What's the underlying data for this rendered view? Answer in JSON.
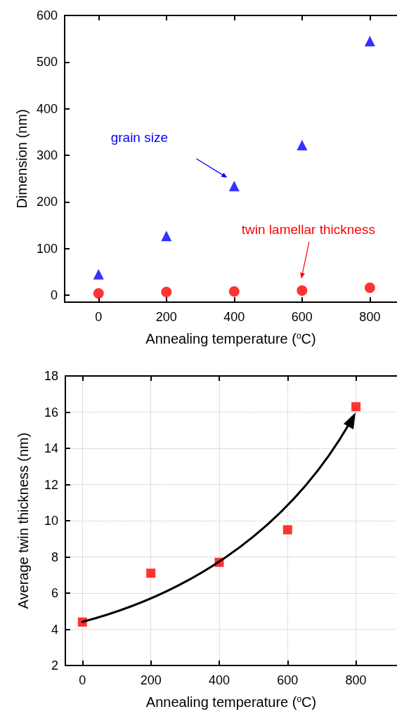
{
  "chart_data": [
    {
      "type": "scatter",
      "xlabel": "Annealing temperature ($^{o}$C)",
      "ylabel": "Dimension (nm)",
      "x": [
        0,
        200,
        400,
        600,
        800
      ],
      "series": [
        {
          "name": "grain size",
          "color": "#0000ff",
          "marker": "triangle",
          "values": [
            45,
            127,
            234,
            322,
            545
          ]
        },
        {
          "name": "twin lamellar thickness",
          "color": "#ff0000",
          "marker": "circle",
          "values": [
            4,
            7,
            8,
            10,
            16
          ]
        }
      ],
      "xlim": [
        -100,
        880
      ],
      "xticks": [
        0,
        200,
        400,
        600,
        800
      ],
      "ylim": [
        -15,
        600
      ],
      "yticks": [
        0,
        100,
        200,
        300,
        400,
        500,
        600
      ],
      "grid": false
    },
    {
      "type": "scatter",
      "xlabel": "Annealing temperature ($^{o}$C)",
      "ylabel": "Average twin thickness (nm)",
      "x": [
        0,
        200,
        400,
        600,
        800
      ],
      "series": [
        {
          "color": "#ff0000",
          "marker": "square",
          "values": [
            4.4,
            7.1,
            7.7,
            9.5,
            16.3
          ]
        }
      ],
      "xlim": [
        -50,
        920
      ],
      "xticks": [
        0,
        200,
        400,
        600,
        800
      ],
      "ylim": [
        2,
        18
      ],
      "yticks": [
        2,
        4,
        6,
        8,
        10,
        12,
        14,
        16,
        18
      ],
      "grid": true
    }
  ]
}
